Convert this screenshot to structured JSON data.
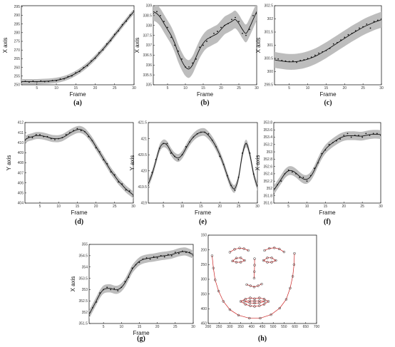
{
  "figure": {
    "background": "#ffffff"
  },
  "style": {
    "band_color": "#bdbdbd",
    "line_color": "#111111",
    "point_color": "#111111",
    "landmark_color": "#cc2222",
    "landmark_point_color": "#333333"
  },
  "chart_data": [
    {
      "id": "a",
      "type": "line",
      "caption": "(a)",
      "xlabel": "Frame",
      "ylabel": "X axis",
      "xlim": [
        1,
        30
      ],
      "ylim": [
        250,
        295.5
      ],
      "xticks": [
        "5",
        "10",
        "15",
        "20",
        "25",
        "30"
      ],
      "yticks": [
        "250",
        "255",
        "260",
        "265",
        "270",
        "275",
        "280",
        "285",
        "290",
        "295"
      ],
      "x": [
        1,
        2,
        3,
        4,
        5,
        6,
        7,
        8,
        9,
        10,
        11,
        12,
        13,
        14,
        15,
        16,
        17,
        18,
        19,
        20,
        21,
        22,
        23,
        24,
        25,
        26,
        27,
        28,
        29,
        30
      ],
      "mean": [
        251.8,
        251.8,
        251.8,
        251.8,
        251.8,
        251.9,
        252,
        252.1,
        252.3,
        252.6,
        253.0,
        253.6,
        254.4,
        255.4,
        256.6,
        258.0,
        259.6,
        261.4,
        263.4,
        265.6,
        268.0,
        270.5,
        273.1,
        275.8,
        278.6,
        281.4,
        284.2,
        287.0,
        289.7,
        292.2
      ],
      "band": 1.5,
      "points": [
        251.5,
        252.0,
        251.6,
        252.1,
        251.7,
        252.2,
        251.8,
        251.9,
        252.4,
        252.3,
        253.3,
        253.4,
        254.7,
        255.1,
        256.9,
        257.7,
        259.9,
        261.0,
        263.7,
        265.3,
        268.4,
        270.1,
        273.5,
        275.4,
        279.0,
        281.0,
        284.6,
        286.6,
        290.1,
        292.6
      ]
    },
    {
      "id": "b",
      "type": "line",
      "caption": "(b)",
      "xlabel": "Frame",
      "ylabel": "X axis",
      "xlim": [
        1,
        30
      ],
      "ylim": [
        335,
        339
      ],
      "xticks": [
        "5",
        "10",
        "15",
        "20",
        "25",
        "30"
      ],
      "yticks": [
        "335",
        "335.5",
        "336",
        "336.5",
        "337",
        "337.5",
        "338",
        "338.5",
        "339"
      ],
      "x": [
        1,
        2,
        3,
        4,
        5,
        6,
        7,
        8,
        9,
        10,
        11,
        12,
        13,
        14,
        15,
        16,
        17,
        18,
        19,
        20,
        21,
        22,
        23,
        24,
        25,
        26,
        27,
        28,
        29,
        30
      ],
      "mean": [
        338.7,
        338.6,
        338.4,
        338.1,
        337.8,
        337.5,
        337.1,
        336.6,
        336.2,
        335.9,
        335.8,
        336.0,
        336.4,
        336.8,
        337.1,
        337.3,
        337.4,
        337.5,
        337.6,
        337.8,
        338.0,
        338.1,
        338.2,
        338.3,
        338.1,
        337.8,
        337.6,
        337.9,
        338.3,
        338.7
      ],
      "band": 0.45,
      "points": [
        338.6,
        338.7,
        338.5,
        338.2,
        337.9,
        337.4,
        337.0,
        336.7,
        336.3,
        335.9,
        335.9,
        336.1,
        336.3,
        336.9,
        337.0,
        337.2,
        337.4,
        337.6,
        337.7,
        337.9,
        338.0,
        338.1,
        338.3,
        338.4,
        338.2,
        337.6,
        337.5,
        337.8,
        338.5,
        338.6
      ]
    },
    {
      "id": "c",
      "type": "line",
      "caption": "(c)",
      "xlabel": "Frame",
      "ylabel": "X axis",
      "xlim": [
        1,
        30
      ],
      "ylim": [
        299.5,
        302.5
      ],
      "xticks": [
        "5",
        "10",
        "15",
        "20",
        "25",
        "30"
      ],
      "yticks": [
        "299.5",
        "300",
        "300.5",
        "301",
        "301.5",
        "302",
        "302.5"
      ],
      "x": [
        1,
        2,
        3,
        4,
        5,
        6,
        7,
        8,
        9,
        10,
        11,
        12,
        13,
        14,
        15,
        16,
        17,
        18,
        19,
        20,
        21,
        22,
        23,
        24,
        25,
        26,
        27,
        28,
        29,
        30
      ],
      "mean": [
        300.45,
        300.42,
        300.4,
        300.38,
        300.37,
        300.37,
        300.38,
        300.4,
        300.43,
        300.47,
        300.52,
        300.58,
        300.65,
        300.73,
        300.81,
        300.9,
        300.99,
        301.08,
        301.17,
        301.26,
        301.35,
        301.44,
        301.52,
        301.6,
        301.68,
        301.75,
        301.81,
        301.87,
        301.92,
        301.97
      ],
      "band": 0.3,
      "points": [
        300.5,
        300.48,
        300.42,
        300.4,
        300.38,
        300.4,
        300.35,
        300.42,
        300.45,
        300.5,
        300.55,
        300.62,
        300.7,
        300.75,
        300.8,
        300.88,
        301.05,
        301.1,
        301.2,
        301.3,
        301.4,
        301.45,
        301.55,
        301.65,
        301.7,
        301.8,
        301.65,
        301.9,
        301.95,
        302.0
      ]
    },
    {
      "id": "d",
      "type": "line",
      "caption": "(d)",
      "xlabel": "Frame",
      "ylabel": "Y axis",
      "xlim": [
        1,
        30
      ],
      "ylim": [
        404,
        412
      ],
      "xticks": [
        "5",
        "10",
        "15",
        "20",
        "25",
        "30"
      ],
      "yticks": [
        "404",
        "405",
        "406",
        "407",
        "408",
        "409",
        "410",
        "411",
        "412"
      ],
      "x": [
        1,
        2,
        3,
        4,
        5,
        6,
        7,
        8,
        9,
        10,
        11,
        12,
        13,
        14,
        15,
        16,
        17,
        18,
        19,
        20,
        21,
        22,
        23,
        24,
        25,
        26,
        27,
        28,
        29,
        30
      ],
      "mean": [
        410.3,
        410.5,
        410.6,
        410.7,
        410.7,
        410.65,
        410.55,
        410.45,
        410.4,
        410.4,
        410.5,
        410.7,
        410.95,
        411.15,
        411.3,
        411.3,
        411.1,
        410.7,
        410.2,
        409.6,
        409.0,
        408.4,
        407.8,
        407.2,
        406.7,
        406.2,
        405.8,
        405.4,
        405.1,
        404.8
      ],
      "band": 0.35,
      "points": [
        410.2,
        410.6,
        410.5,
        410.8,
        410.8,
        410.6,
        410.6,
        410.4,
        410.3,
        410.4,
        410.5,
        410.8,
        411.0,
        411.2,
        411.4,
        411.2,
        411.1,
        410.6,
        410.2,
        409.5,
        409.1,
        408.3,
        407.9,
        407.1,
        406.8,
        406.1,
        405.9,
        405.3,
        405.2,
        404.7
      ]
    },
    {
      "id": "e",
      "type": "line",
      "caption": "(e)",
      "xlabel": "Frame",
      "ylabel": "Y axis",
      "xlim": [
        1,
        30
      ],
      "ylim": [
        419,
        421.5
      ],
      "xticks": [
        "5",
        "10",
        "15",
        "20",
        "25",
        "30"
      ],
      "yticks": [
        "419",
        "419.5",
        "420",
        "420.5",
        "421",
        "421.5"
      ],
      "x": [
        1,
        2,
        3,
        4,
        5,
        6,
        7,
        8,
        9,
        10,
        11,
        12,
        13,
        14,
        15,
        16,
        17,
        18,
        19,
        20,
        21,
        22,
        23,
        24,
        25,
        26,
        27,
        28,
        29,
        30
      ],
      "mean": [
        419.6,
        419.9,
        420.3,
        420.7,
        420.85,
        420.8,
        420.6,
        420.45,
        420.4,
        420.5,
        420.7,
        420.9,
        421.05,
        421.15,
        421.2,
        421.2,
        421.1,
        420.95,
        420.75,
        420.5,
        420.2,
        419.85,
        419.55,
        419.45,
        419.8,
        420.5,
        420.85,
        420.5,
        419.9,
        419.5
      ],
      "band": 0.12,
      "points": [
        419.55,
        419.95,
        420.35,
        420.7,
        420.85,
        420.85,
        420.55,
        420.45,
        420.35,
        420.5,
        420.75,
        420.9,
        421.05,
        421.15,
        421.2,
        421.2,
        421.15,
        420.95,
        420.75,
        420.45,
        420.2,
        419.85,
        419.55,
        419.4,
        419.8,
        420.55,
        420.85,
        420.55,
        419.9,
        419.55
      ]
    },
    {
      "id": "f",
      "type": "line",
      "caption": "(f)",
      "xlabel": "Frame",
      "ylabel": "X axis",
      "xlim": [
        1,
        30
      ],
      "ylim": [
        351.6,
        353.8
      ],
      "xticks": [
        "5",
        "10",
        "15",
        "20",
        "25",
        "30"
      ],
      "yticks": [
        "351.6",
        "351.8",
        "352",
        "352.2",
        "352.4",
        "352.6",
        "352.8",
        "353",
        "353.2",
        "353.4",
        "353.6",
        "353.8"
      ],
      "x": [
        1,
        2,
        3,
        4,
        5,
        6,
        7,
        8,
        9,
        10,
        11,
        12,
        13,
        14,
        15,
        16,
        17,
        18,
        19,
        20,
        21,
        22,
        23,
        24,
        25,
        26,
        27,
        28,
        29,
        30
      ],
      "mean": [
        351.95,
        352.1,
        352.25,
        352.4,
        352.48,
        352.48,
        352.42,
        352.33,
        352.26,
        352.25,
        352.33,
        352.5,
        352.72,
        352.92,
        353.07,
        353.17,
        353.25,
        353.32,
        353.38,
        353.42,
        353.44,
        353.44,
        353.44,
        353.43,
        353.43,
        353.45,
        353.47,
        353.48,
        353.48,
        353.47
      ],
      "band": 0.12,
      "points": [
        351.85,
        352.1,
        352.2,
        352.4,
        352.5,
        352.45,
        352.4,
        352.3,
        352.3,
        352.2,
        352.35,
        352.55,
        352.7,
        352.95,
        353.05,
        353.2,
        353.25,
        353.3,
        353.35,
        353.45,
        353.5,
        353.4,
        353.45,
        353.45,
        353.4,
        353.5,
        353.45,
        353.5,
        353.5,
        353.45
      ]
    },
    {
      "id": "g",
      "type": "line",
      "caption": "(g)",
      "xlabel": "Frame",
      "ylabel": "X axis",
      "xlim": [
        1,
        30
      ],
      "ylim": [
        351.5,
        355
      ],
      "xticks": [
        "5",
        "10",
        "15",
        "20",
        "25",
        "30"
      ],
      "yticks": [
        "351.5",
        "352",
        "352.5",
        "353",
        "353.5",
        "354",
        "354.5",
        "355"
      ],
      "x": [
        1,
        2,
        3,
        4,
        5,
        6,
        7,
        8,
        9,
        10,
        11,
        12,
        13,
        14,
        15,
        16,
        17,
        18,
        19,
        20,
        21,
        22,
        23,
        24,
        25,
        26,
        27,
        28,
        29,
        30
      ],
      "mean": [
        351.9,
        352.2,
        352.5,
        352.8,
        353.0,
        353.05,
        353.05,
        353.0,
        353.0,
        353.1,
        353.3,
        353.6,
        353.9,
        354.1,
        354.25,
        354.33,
        354.37,
        354.4,
        354.42,
        354.45,
        354.48,
        354.5,
        354.52,
        354.55,
        354.6,
        354.65,
        354.68,
        354.68,
        354.62,
        354.55
      ],
      "band": 0.18,
      "points": [
        351.85,
        352.2,
        352.45,
        352.85,
        353.0,
        353.1,
        353.0,
        353.05,
        352.95,
        353.1,
        353.35,
        353.55,
        353.95,
        354.1,
        354.2,
        354.35,
        354.4,
        354.35,
        354.45,
        354.4,
        354.5,
        354.45,
        354.55,
        354.5,
        354.65,
        354.6,
        354.7,
        354.65,
        354.65,
        354.5
      ]
    },
    {
      "id": "h",
      "type": "scatter",
      "caption": "(h)",
      "xlim": [
        200,
        700
      ],
      "ylim": [
        150,
        450
      ],
      "xticks": [
        "200",
        "250",
        "300",
        "350",
        "400",
        "450",
        "500",
        "550",
        "600",
        "650",
        "700"
      ],
      "yticks": [
        "150",
        "200",
        "250",
        "300",
        "350",
        "400",
        "450"
      ],
      "y_inverted": true,
      "groups": [
        {
          "closed": false,
          "points": [
            [
              218,
              220
            ],
            [
              224,
              262
            ],
            [
              232,
              302
            ],
            [
              248,
              340
            ],
            [
              270,
              375
            ],
            [
              300,
              403
            ],
            [
              340,
              422
            ],
            [
              390,
              432
            ],
            [
              440,
              432
            ],
            [
              490,
              420
            ],
            [
              530,
              398
            ],
            [
              560,
              368
            ],
            [
              578,
              330
            ],
            [
              590,
              290
            ],
            [
              596,
              250
            ],
            [
              598,
              212
            ]
          ]
        },
        {
          "closed": false,
          "points": [
            [
              300,
              208
            ],
            [
              322,
              198
            ],
            [
              345,
              194
            ],
            [
              365,
              196
            ],
            [
              385,
              202
            ]
          ]
        },
        {
          "closed": false,
          "points": [
            [
              460,
              202
            ],
            [
              482,
              195
            ],
            [
              505,
              193
            ],
            [
              528,
              197
            ],
            [
              550,
              207
            ]
          ]
        },
        {
          "closed": false,
          "points": [
            [
              414,
              230
            ],
            [
              414,
              252
            ],
            [
              413,
              274
            ],
            [
              412,
              296
            ]
          ]
        },
        {
          "closed": false,
          "points": [
            [
              378,
              318
            ],
            [
              395,
              322
            ],
            [
              412,
              326
            ],
            [
              430,
              322
            ],
            [
              447,
              316
            ]
          ]
        },
        {
          "closed": true,
          "points": [
            [
              312,
              238
            ],
            [
              330,
              228
            ],
            [
              350,
              227
            ],
            [
              368,
              236
            ],
            [
              350,
              242
            ],
            [
              330,
              242
            ]
          ]
        },
        {
          "closed": true,
          "points": [
            [
              455,
              236
            ],
            [
              473,
              227
            ],
            [
              493,
              227
            ],
            [
              512,
              236
            ],
            [
              493,
              242
            ],
            [
              473,
              242
            ]
          ]
        },
        {
          "closed": true,
          "points": [
            [
              350,
              375
            ],
            [
              372,
              367
            ],
            [
              394,
              363
            ],
            [
              414,
              366
            ],
            [
              436,
              363
            ],
            [
              458,
              367
            ],
            [
              478,
              375
            ],
            [
              458,
              385
            ],
            [
              436,
              390
            ],
            [
              414,
              392
            ],
            [
              394,
              390
            ],
            [
              372,
              385
            ]
          ]
        },
        {
          "closed": true,
          "points": [
            [
              366,
              375
            ],
            [
              392,
              373
            ],
            [
              414,
              374
            ],
            [
              436,
              373
            ],
            [
              462,
              375
            ],
            [
              436,
              380
            ],
            [
              414,
              381
            ],
            [
              392,
              380
            ]
          ]
        }
      ]
    }
  ]
}
